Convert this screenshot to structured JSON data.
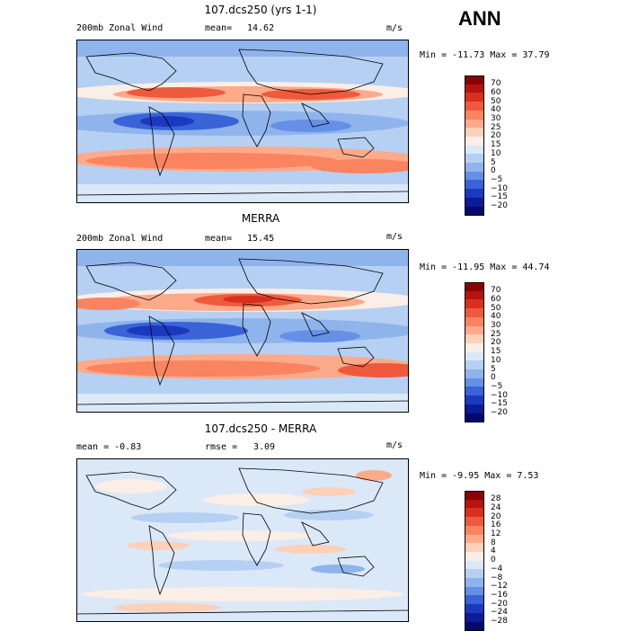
{
  "season": "ANN",
  "panels": [
    {
      "title": "107.dcs250 (yrs 1-1)",
      "left_label": "200mb Zonal Wind",
      "stat_label": "mean=",
      "stat_value": "14.62",
      "units": "m/s",
      "minmax": "Min = -11.73  Max =  37.79",
      "colorbar_labels": [
        "70",
        "60",
        "50",
        "40",
        "30",
        "25",
        "20",
        "15",
        "10",
        "5",
        "0",
        "−5",
        "−10",
        "−15",
        "−20"
      ]
    },
    {
      "title": "MERRA",
      "left_label": "200mb Zonal Wind",
      "stat_label": "mean=",
      "stat_value": "15.45",
      "units": "m/s",
      "minmax": "Min = -11.95  Max =  44.74",
      "colorbar_labels": [
        "70",
        "60",
        "50",
        "40",
        "30",
        "25",
        "20",
        "15",
        "10",
        "5",
        "0",
        "−5",
        "−10",
        "−15",
        "−20"
      ]
    },
    {
      "title": "107.dcs250 - MERRA",
      "left_label": "mean =  -0.83",
      "stat_label": "rmse =",
      "stat_value": "3.09",
      "units": "m/s",
      "minmax": "Min =  -9.95  Max =   7.53",
      "colorbar_labels": [
        "28",
        "24",
        "20",
        "16",
        "12",
        "8",
        "4",
        "0",
        "−4",
        "−8",
        "−12",
        "−16",
        "−20",
        "−24",
        "−28"
      ]
    }
  ],
  "colors": {
    "abs_scale": [
      "#8b0000",
      "#b5130f",
      "#d7301f",
      "#ef5a3c",
      "#f9845f",
      "#fcaa8a",
      "#fdd0b8",
      "#fbeee6",
      "#dbe8f8",
      "#b5d0f2",
      "#8fb4ec",
      "#6690e6",
      "#3a63d8",
      "#1b39bf",
      "#0a1d96",
      "#020a6e"
    ],
    "diff_scale": [
      "#8b0000",
      "#b5130f",
      "#d7301f",
      "#ef5a3c",
      "#f9845f",
      "#fcaa8a",
      "#fdd0b8",
      "#fbeee6",
      "#dbe8f8",
      "#b5d0f2",
      "#8fb4ec",
      "#6690e6",
      "#3a63d8",
      "#1b39bf",
      "#0a1d96",
      "#020a6e"
    ]
  }
}
